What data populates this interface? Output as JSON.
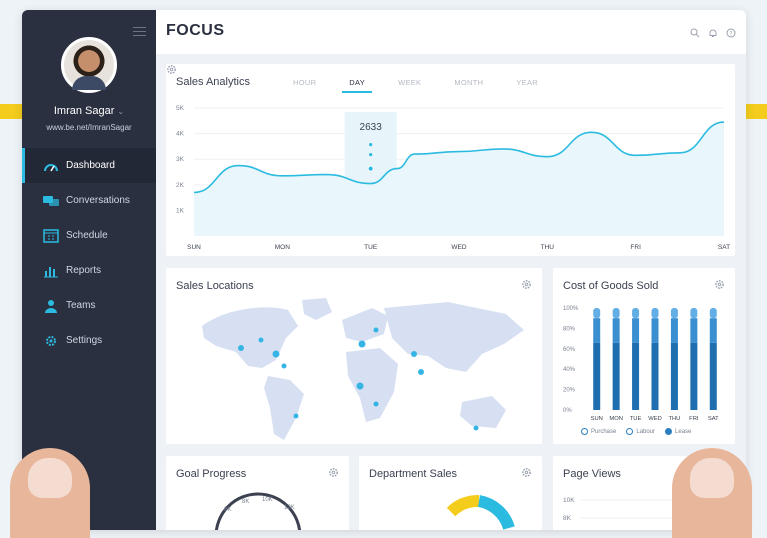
{
  "brand": "FOCUS",
  "user": {
    "name": "Imran Sagar",
    "link": "www.be.net/ImranSagar"
  },
  "nav": [
    {
      "label": "Dashboard",
      "icon": "speedometer-icon",
      "active": true
    },
    {
      "label": "Conversations",
      "icon": "chat-icon",
      "active": false
    },
    {
      "label": "Schedule",
      "icon": "calendar-icon",
      "active": false
    },
    {
      "label": "Reports",
      "icon": "bar-chart-icon",
      "active": false
    },
    {
      "label": "Teams",
      "icon": "users-icon",
      "active": false
    },
    {
      "label": "Settings",
      "icon": "gear-icon",
      "active": false
    }
  ],
  "sales": {
    "title": "Sales Analytics",
    "tabs": [
      "HOUR",
      "DAY",
      "WEEK",
      "MONTH",
      "YEAR"
    ],
    "active_tab": "DAY",
    "tooltip": "2633"
  },
  "locations": {
    "title": "Sales Locations"
  },
  "cogs": {
    "title": "Cost of Goods Sold",
    "legend": [
      "Purchase",
      "Labour",
      "Lease"
    ]
  },
  "goal": {
    "title": "Goal Progress",
    "gauge_ticks": [
      "6K",
      "8K",
      "10K",
      "12K"
    ]
  },
  "dept": {
    "title": "Department Sales"
  },
  "views": {
    "title": "Page Views",
    "ticks": [
      "10K",
      "8K"
    ]
  },
  "colors": {
    "accent": "#2bbbe0",
    "sidebar": "#2b3040",
    "bar_dark": "#1f6fb0",
    "bar_mid": "#3a8fd1",
    "bar_light": "#64aee6",
    "map": "#d7e0f2",
    "highlight": "#f4cd1c"
  },
  "chart_data": [
    {
      "type": "line",
      "title": "",
      "categories": [
        "SUN",
        "MON",
        "TUE",
        "WED",
        "THU",
        "FRI",
        "SAT"
      ],
      "y_ticks": [
        "5K",
        "4K",
        "3K",
        "2K",
        "1K"
      ],
      "ylim": [
        0,
        5000
      ],
      "x": [
        0,
        0.5,
        1,
        1.5,
        2,
        2.3,
        2.5,
        3,
        3.5,
        4,
        4.5,
        5,
        5.5,
        6
      ],
      "values": [
        1700,
        2750,
        2350,
        2400,
        2050,
        2633,
        3200,
        3300,
        3400,
        3100,
        4050,
        3150,
        3250,
        4450
      ],
      "highlight": {
        "category": "TUE",
        "value": 2633
      },
      "grid": true
    },
    {
      "type": "bar",
      "title": "",
      "categories": [
        "SUN",
        "MON",
        "TUE",
        "WED",
        "THU",
        "FRI",
        "SAT"
      ],
      "y_ticks": [
        "100%",
        "80%",
        "60%",
        "40%",
        "20%",
        "0%"
      ],
      "ylim": [
        0,
        100
      ],
      "stacked": true,
      "series": [
        {
          "name": "Purchase",
          "values": [
            66,
            66,
            66,
            66,
            66,
            66,
            66
          ]
        },
        {
          "name": "Labour",
          "values": [
            24,
            24,
            24,
            24,
            24,
            24,
            24
          ]
        },
        {
          "name": "Lease",
          "values": [
            10,
            10,
            10,
            10,
            10,
            10,
            10
          ]
        }
      ],
      "legend_position": "bottom"
    }
  ]
}
